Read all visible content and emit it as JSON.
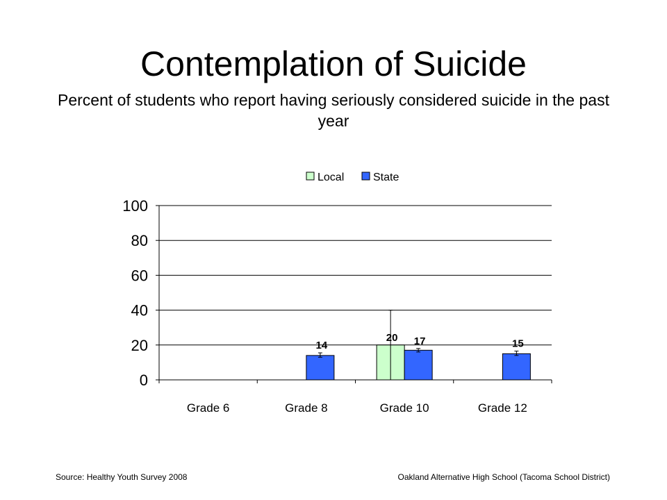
{
  "slide": {
    "title": "Contemplation of Suicide",
    "subtitle": "Percent of students who report having seriously considered suicide in the past year",
    "source": "Source: Healthy Youth Survey 2008",
    "school": "Oakland Alternative High School (Tacoma School District)"
  },
  "chart_data": {
    "type": "bar",
    "title": "",
    "xlabel": "",
    "ylabel": "",
    "ylim": [
      0,
      100
    ],
    "yticks": [
      0,
      20,
      40,
      60,
      80,
      100
    ],
    "grid": true,
    "legend_position": "top",
    "categories": [
      "Grade 6",
      "Grade 8",
      "Grade 10",
      "Grade 12"
    ],
    "series": [
      {
        "name": "Local",
        "color": "#ccffcc",
        "values": [
          null,
          null,
          20,
          null
        ],
        "labels": [
          "",
          "",
          "20",
          ""
        ],
        "error_low": [
          null,
          null,
          0,
          null
        ],
        "error_high": [
          null,
          null,
          40,
          null
        ]
      },
      {
        "name": "State",
        "color": "#3366ff",
        "values": [
          null,
          14,
          17,
          15
        ],
        "labels": [
          "",
          "14",
          "17",
          "15"
        ],
        "error_low": [
          null,
          13,
          16,
          14
        ],
        "error_high": [
          null,
          15.5,
          18,
          16.5
        ]
      }
    ]
  }
}
